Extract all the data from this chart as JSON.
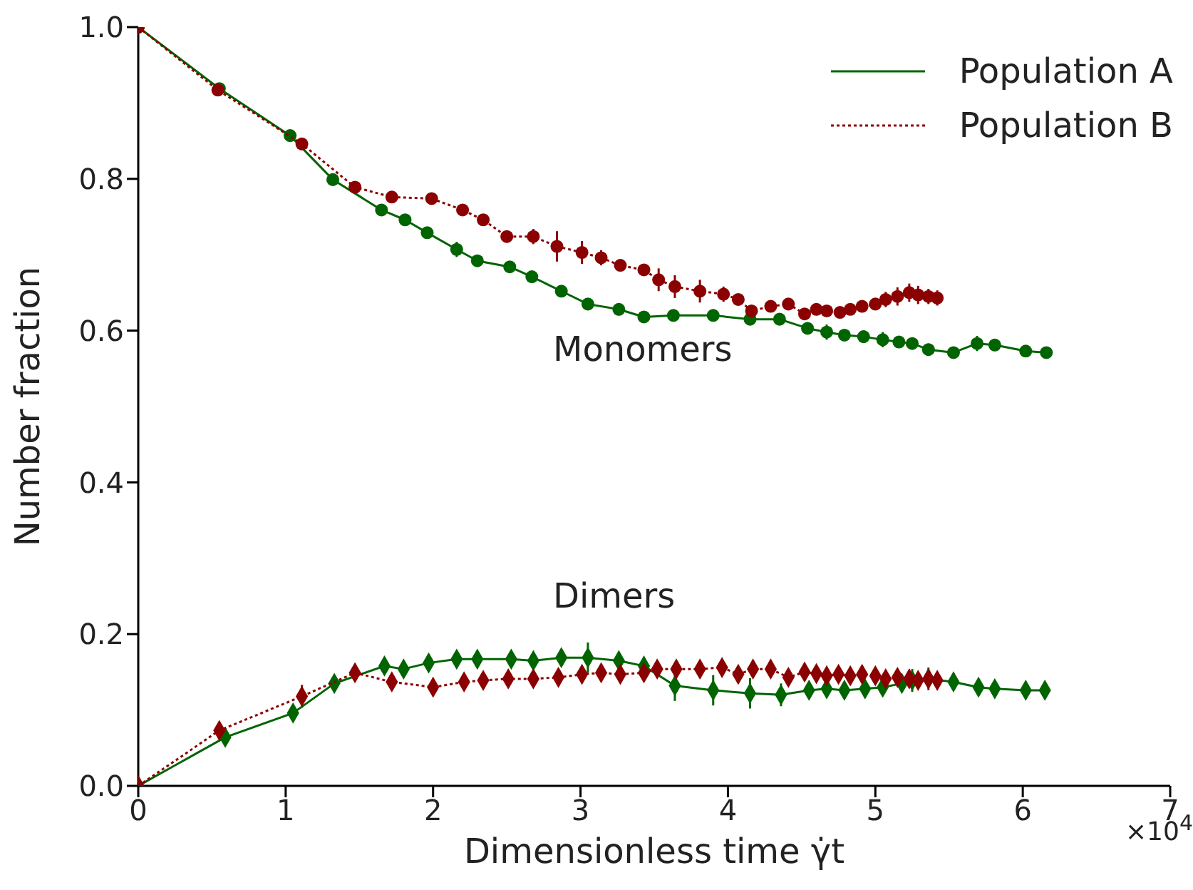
{
  "chart_data": {
    "type": "line",
    "xlabel": "Dimensionless time γ̇t",
    "ylabel": "Number fraction",
    "xlim": [
      0,
      7
    ],
    "xticks": [
      0,
      1,
      2,
      3,
      4,
      5,
      6,
      7
    ],
    "ylim": [
      0,
      1
    ],
    "yticks": [
      {
        "value": 0,
        "label": "0.0"
      },
      {
        "value": 0.2,
        "label": "0.2"
      },
      {
        "value": 0.4,
        "label": "0.4"
      },
      {
        "value": 0.6,
        "label": "0.6"
      },
      {
        "value": 0.8,
        "label": "0.8"
      },
      {
        "value": 1,
        "label": "1.0"
      }
    ],
    "legend": "top right",
    "annotations": [
      "Monomers",
      "Dimers",
      "×10$^{4}$"
    ],
    "series": [
      {
        "name": "Population A",
        "color": "#006400",
        "marker": "circle",
        "line_style": "solid",
        "x": [
          0,
          0.55,
          1.03,
          1.32,
          1.65,
          1.81,
          1.96,
          2.16,
          2.3,
          2.52,
          2.67,
          2.87,
          3.05,
          3.26,
          3.43,
          3.63,
          3.9,
          4.15,
          4.35,
          4.54,
          4.67,
          4.79,
          4.92,
          5.05,
          5.16,
          5.25,
          5.36,
          5.53,
          5.69,
          5.81,
          6.02,
          6.16
        ],
        "values": [
          1.0,
          0.919,
          0.857,
          0.799,
          0.759,
          0.746,
          0.729,
          0.707,
          0.692,
          0.684,
          0.671,
          0.652,
          0.635,
          0.628,
          0.618,
          0.62,
          0.62,
          0.615,
          0.615,
          0.603,
          0.598,
          0.594,
          0.592,
          0.588,
          0.585,
          0.583,
          0.575,
          0.571,
          0.583,
          0.581,
          0.573,
          0.571
        ],
        "errors": [
          null,
          null,
          0.004,
          0.004,
          0.004,
          0.004,
          0.004,
          0.01,
          0.004,
          0.004,
          0.004,
          0.004,
          0.004,
          0.008,
          0.004,
          0.004,
          0.008,
          0.004,
          0.004,
          0.008,
          0.01,
          0.006,
          0.008,
          0.01,
          0.008,
          0.006,
          0.008,
          0.008,
          0.01,
          0.008,
          0.004,
          0.004
        ]
      },
      {
        "name": "Population B",
        "color": "#8b0000",
        "marker": "circle",
        "line_style": "dotted",
        "x": [
          0,
          0.54,
          1.11,
          1.47,
          1.72,
          1.99,
          2.2,
          2.34,
          2.5,
          2.68,
          2.84,
          3.01,
          3.14,
          3.27,
          3.43,
          3.53,
          3.64,
          3.81,
          3.97,
          4.07,
          4.16,
          4.29,
          4.41,
          4.52,
          4.6,
          4.67,
          4.76,
          4.83,
          4.91,
          5.0,
          5.07,
          5.15,
          5.23,
          5.29,
          5.36,
          5.42
        ],
        "values": [
          1.0,
          0.917,
          0.846,
          0.789,
          0.776,
          0.774,
          0.759,
          0.746,
          0.724,
          0.724,
          0.711,
          0.703,
          0.696,
          0.686,
          0.68,
          0.667,
          0.658,
          0.652,
          0.648,
          0.641,
          0.626,
          0.632,
          0.635,
          0.622,
          0.628,
          0.626,
          0.624,
          0.628,
          0.632,
          0.635,
          0.641,
          0.645,
          0.65,
          0.647,
          0.645,
          0.643
        ],
        "errors": [
          null,
          0.004,
          0.004,
          0.004,
          0.004,
          0.004,
          0.004,
          0.004,
          0.008,
          0.01,
          0.02,
          0.015,
          0.01,
          0.006,
          0.006,
          0.015,
          0.015,
          0.015,
          0.01,
          0.006,
          0.006,
          0.006,
          0.006,
          0.006,
          0.006,
          0.006,
          0.006,
          0.006,
          0.008,
          0.008,
          0.01,
          0.012,
          0.012,
          0.012,
          0.01,
          0.01
        ]
      },
      {
        "color": "#006400",
        "marker": "diamond",
        "line_style": "solid",
        "x": [
          0,
          0.59,
          1.05,
          1.33,
          1.67,
          1.8,
          1.97,
          2.16,
          2.3,
          2.53,
          2.68,
          2.87,
          3.05,
          3.26,
          3.43,
          3.64,
          3.9,
          4.15,
          4.36,
          4.55,
          4.67,
          4.79,
          4.93,
          5.05,
          5.18,
          5.25,
          5.36,
          5.53,
          5.7,
          5.81,
          6.02,
          6.15
        ],
        "values": [
          0,
          0.064,
          0.096,
          0.135,
          0.158,
          0.154,
          0.162,
          0.167,
          0.167,
          0.167,
          0.165,
          0.169,
          0.169,
          0.165,
          0.158,
          0.132,
          0.126,
          0.122,
          0.12,
          0.126,
          0.128,
          0.126,
          0.128,
          0.13,
          0.135,
          0.139,
          0.141,
          0.137,
          0.13,
          0.128,
          0.126,
          0.126
        ],
        "errors": [
          null,
          0.006,
          0.008,
          0.008,
          0.008,
          0.008,
          0.008,
          0.008,
          0.008,
          0.008,
          0.008,
          0.008,
          0.02,
          0.01,
          0.01,
          0.02,
          0.02,
          0.02,
          0.015,
          0.01,
          0.01,
          0.01,
          0.01,
          0.01,
          0.01,
          0.015,
          0.015,
          0.006,
          0.006,
          0.006,
          0.006,
          0.008
        ]
      },
      {
        "color": "#8b0000",
        "marker": "diamond",
        "line_style": "dotted",
        "x": [
          0,
          0.55,
          1.11,
          1.47,
          1.72,
          2.0,
          2.21,
          2.34,
          2.51,
          2.68,
          2.85,
          3.01,
          3.14,
          3.27,
          3.43,
          3.52,
          3.65,
          3.81,
          3.96,
          4.07,
          4.17,
          4.29,
          4.41,
          4.52,
          4.6,
          4.67,
          4.75,
          4.83,
          4.91,
          5.0,
          5.07,
          5.15,
          5.23,
          5.29,
          5.36,
          5.42
        ],
        "values": [
          0,
          0.073,
          0.118,
          0.149,
          0.137,
          0.13,
          0.137,
          0.139,
          0.141,
          0.141,
          0.143,
          0.147,
          0.149,
          0.147,
          0.149,
          0.154,
          0.154,
          0.154,
          0.156,
          0.147,
          0.154,
          0.154,
          0.143,
          0.15,
          0.148,
          0.145,
          0.147,
          0.145,
          0.147,
          0.145,
          0.141,
          0.143,
          0.141,
          0.139,
          0.141,
          0.139
        ],
        "errors": [
          null,
          0.008,
          0.015,
          0.008,
          0.008,
          0.008,
          0.008,
          0.008,
          0.008,
          0.008,
          0.008,
          0.008,
          0.008,
          0.008,
          0.008,
          0.008,
          0.008,
          0.008,
          0.008,
          0.008,
          0.008,
          0.008,
          0.008,
          0.008,
          0.008,
          0.008,
          0.008,
          0.008,
          0.008,
          0.008,
          0.008,
          0.008,
          0.008,
          0.008,
          0.008,
          0.008
        ]
      }
    ]
  }
}
